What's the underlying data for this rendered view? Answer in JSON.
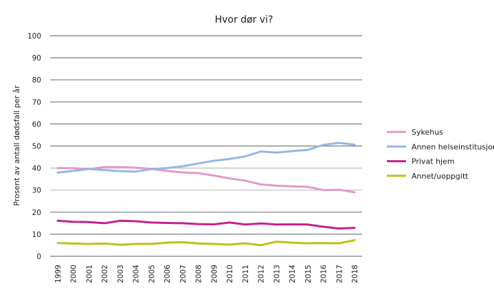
{
  "chart_data": {
    "type": "line",
    "title": "Hvor dør vi?",
    "xlabel": "",
    "ylabel": "Prosent av antall dødsfall per år",
    "ylim": [
      0,
      100
    ],
    "yticks": [
      0,
      10,
      20,
      30,
      40,
      50,
      60,
      70,
      80,
      90,
      100
    ],
    "grid": true,
    "legend_position": "right",
    "x": [
      "1999",
      "2000",
      "2001",
      "2002",
      "2003",
      "2004",
      "2005",
      "2006",
      "2007",
      "2008",
      "2009",
      "2010",
      "2011",
      "2012",
      "2013",
      "2014",
      "2015",
      "2016",
      "2017",
      "2018"
    ],
    "series": [
      {
        "name": "Sykehus",
        "color": "#e29ac5",
        "values": [
          40.0,
          39.9,
          39.5,
          40.5,
          40.4,
          40.2,
          39.6,
          38.7,
          38.0,
          37.7,
          36.6,
          35.3,
          34.3,
          32.6,
          32.0,
          31.7,
          31.5,
          30.0,
          30.2,
          29.0
        ]
      },
      {
        "name": "Annen helseinstitusjon",
        "color": "#92b8e3",
        "values": [
          37.9,
          38.7,
          39.6,
          39.1,
          38.6,
          38.4,
          39.5,
          40.0,
          40.8,
          42.1,
          43.3,
          44.1,
          45.3,
          47.5,
          47.0,
          47.7,
          48.2,
          50.5,
          51.4,
          50.6
        ]
      },
      {
        "name": "Privat hjem",
        "color": "#c81e8c",
        "values": [
          16.1,
          15.6,
          15.5,
          15.0,
          16.1,
          15.9,
          15.3,
          15.1,
          15.0,
          14.6,
          14.5,
          15.3,
          14.4,
          14.9,
          14.4,
          14.5,
          14.4,
          13.4,
          12.6,
          12.9
        ]
      },
      {
        "name": "Annet/uoppgitt",
        "color": "#bcc213",
        "values": [
          6.0,
          5.8,
          5.6,
          5.8,
          5.2,
          5.6,
          5.6,
          6.2,
          6.4,
          5.8,
          5.6,
          5.3,
          5.9,
          5.0,
          6.6,
          6.2,
          5.9,
          6.0,
          5.9,
          7.3
        ]
      }
    ]
  }
}
